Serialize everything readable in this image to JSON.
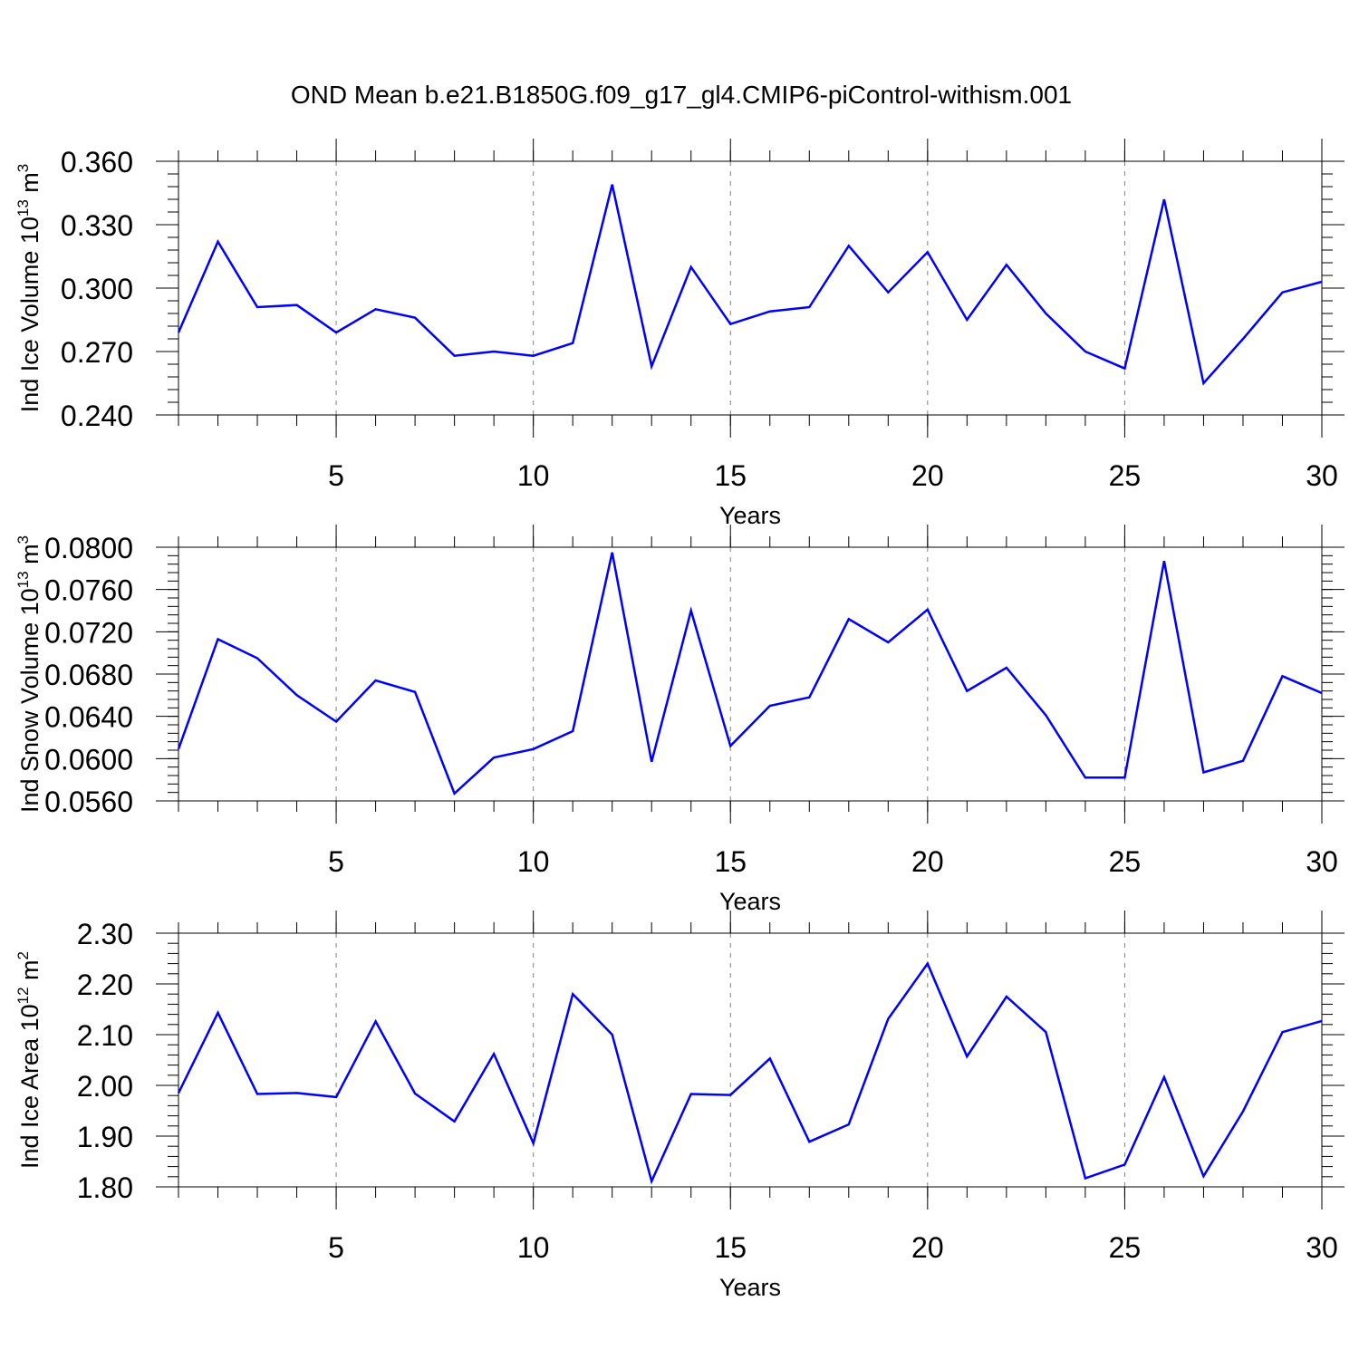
{
  "title": "OND Mean b.e21.B1850G.f09_g17_gl4.CMIP6-piControl-withism.001",
  "colors": {
    "line": "#0000ff",
    "grid": "#808080",
    "axis": "#000000"
  },
  "chart_data": [
    {
      "type": "line",
      "xlabel": "Years",
      "ylabel": "Ind Ice Volume 10",
      "ylabel_exp": "13",
      "ylabel_unit": "m",
      "ylabel_unit_exp": "3",
      "xlim": [
        1,
        30
      ],
      "ylim": [
        0.24,
        0.36
      ],
      "xticks": [
        5,
        10,
        15,
        20,
        25,
        30
      ],
      "xtick_labels": [
        "5",
        "10",
        "15",
        "20",
        "25",
        "30"
      ],
      "yticks": [
        0.24,
        0.27,
        0.3,
        0.33,
        0.36
      ],
      "ytick_labels": [
        "0.240",
        "0.270",
        "0.300",
        "0.330",
        "0.360"
      ],
      "grid": "vertical dashed at major x ticks",
      "x": [
        1,
        2,
        3,
        4,
        5,
        6,
        7,
        8,
        9,
        10,
        11,
        12,
        13,
        14,
        15,
        16,
        17,
        18,
        19,
        20,
        21,
        22,
        23,
        24,
        25,
        26,
        27,
        28,
        29,
        30
      ],
      "y": [
        0.279,
        0.322,
        0.291,
        0.292,
        0.279,
        0.29,
        0.286,
        0.268,
        0.27,
        0.268,
        0.274,
        0.349,
        0.263,
        0.31,
        0.283,
        0.289,
        0.291,
        0.32,
        0.298,
        0.317,
        0.285,
        0.311,
        0.288,
        0.27,
        0.262,
        0.342,
        0.255,
        0.276,
        0.298,
        0.303
      ]
    },
    {
      "type": "line",
      "xlabel": "Years",
      "ylabel": "Ind Snow Volume 10",
      "ylabel_exp": "13",
      "ylabel_unit": "m",
      "ylabel_unit_exp": "3",
      "xlim": [
        1,
        30
      ],
      "ylim": [
        0.056,
        0.08
      ],
      "xticks": [
        5,
        10,
        15,
        20,
        25,
        30
      ],
      "xtick_labels": [
        "5",
        "10",
        "15",
        "20",
        "25",
        "30"
      ],
      "yticks": [
        0.056,
        0.06,
        0.064,
        0.068,
        0.072,
        0.076,
        0.08
      ],
      "ytick_labels": [
        "0.0560",
        "0.0600",
        "0.0640",
        "0.0680",
        "0.0720",
        "0.0760",
        "0.0800"
      ],
      "grid": "vertical dashed at major x ticks",
      "x": [
        1,
        2,
        3,
        4,
        5,
        6,
        7,
        8,
        9,
        10,
        11,
        12,
        13,
        14,
        15,
        16,
        17,
        18,
        19,
        20,
        21,
        22,
        23,
        24,
        25,
        26,
        27,
        28,
        29,
        30
      ],
      "y": [
        0.0609,
        0.0713,
        0.0695,
        0.066,
        0.0635,
        0.0674,
        0.0663,
        0.0567,
        0.0601,
        0.0609,
        0.0626,
        0.0795,
        0.0597,
        0.074,
        0.0612,
        0.065,
        0.0658,
        0.0732,
        0.071,
        0.0741,
        0.0664,
        0.0686,
        0.0641,
        0.0582,
        0.0582,
        0.0787,
        0.0587,
        0.0598,
        0.0678,
        0.0662
      ]
    },
    {
      "type": "line",
      "xlabel": "Years",
      "ylabel": "Ind Ice Area 10",
      "ylabel_exp": "12",
      "ylabel_unit": "m",
      "ylabel_unit_exp": "2",
      "xlim": [
        1,
        30
      ],
      "ylim": [
        1.8,
        2.3
      ],
      "xticks": [
        5,
        10,
        15,
        20,
        25,
        30
      ],
      "xtick_labels": [
        "5",
        "10",
        "15",
        "20",
        "25",
        "30"
      ],
      "yticks": [
        1.8,
        1.9,
        2.0,
        2.1,
        2.2,
        2.3
      ],
      "ytick_labels": [
        "1.80",
        "1.90",
        "2.00",
        "2.10",
        "2.20",
        "2.30"
      ],
      "grid": "vertical dashed at major x ticks",
      "x": [
        1,
        2,
        3,
        4,
        5,
        6,
        7,
        8,
        9,
        10,
        11,
        12,
        13,
        14,
        15,
        16,
        17,
        18,
        19,
        20,
        21,
        22,
        23,
        24,
        25,
        26,
        27,
        28,
        29,
        30
      ],
      "y": [
        1.985,
        2.143,
        1.983,
        1.985,
        1.977,
        2.126,
        1.984,
        1.929,
        2.062,
        1.886,
        2.18,
        2.1,
        1.811,
        1.983,
        1.981,
        2.053,
        1.889,
        1.923,
        2.131,
        2.24,
        2.057,
        2.175,
        2.105,
        1.817,
        1.844,
        2.016,
        1.821,
        1.949,
        2.105,
        2.127
      ]
    }
  ]
}
